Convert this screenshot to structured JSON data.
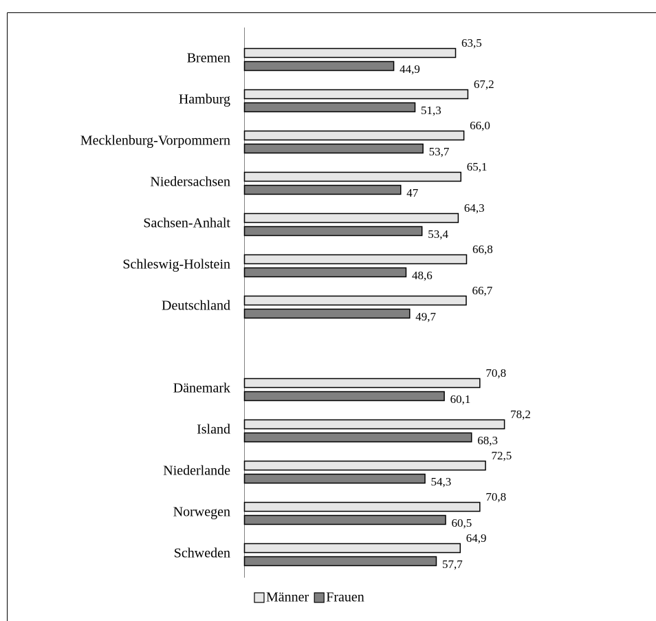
{
  "chart_data": {
    "type": "hbar",
    "categories": [
      "Bremen",
      "Hamburg",
      "Mecklenburg-Vorpommern",
      "Niedersachsen",
      "Sachsen-Anhalt",
      "Schleswig-Holstein",
      "Deutschland",
      null,
      "Dänemark",
      "Island",
      "Niederlande",
      "Norwegen",
      "Schweden"
    ],
    "series": [
      {
        "name": "Männer",
        "color": "#e6e6e6",
        "values": [
          63.5,
          67.2,
          66.0,
          65.1,
          64.3,
          66.8,
          66.7,
          null,
          70.8,
          78.2,
          72.5,
          70.8,
          64.9
        ],
        "value_labels": [
          "63,5",
          "67,2",
          "66,0",
          "65,1",
          "64,3",
          "66,8",
          "66,7",
          null,
          "70,8",
          "78,2",
          "72,5",
          "70,8",
          "64,9"
        ]
      },
      {
        "name": "Frauen",
        "color": "#808080",
        "values": [
          44.9,
          51.3,
          53.7,
          47,
          53.4,
          48.6,
          49.7,
          null,
          60.1,
          68.3,
          54.3,
          60.5,
          57.7
        ],
        "value_labels": [
          "44,9",
          "51,3",
          "53,7",
          "47",
          "53,4",
          "48,6",
          "49,7",
          null,
          "60,1",
          "68,3",
          "54,3",
          "60,5",
          "57,7"
        ]
      }
    ],
    "xlim": [
      0,
      100
    ],
    "legend": "bottom"
  }
}
